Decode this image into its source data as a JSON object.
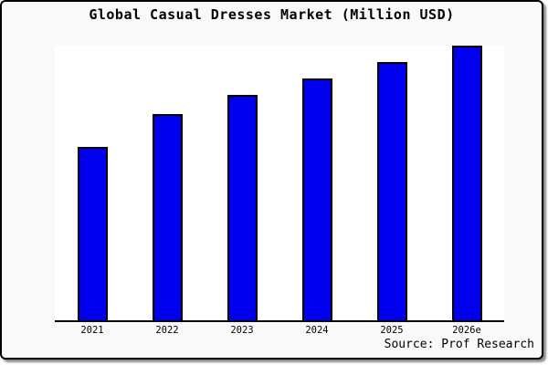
{
  "window": {
    "background": "#f9f9f9",
    "frame_border_color": "#000000",
    "plot_background": "#ffffff"
  },
  "chart": {
    "title": "Global Casual Dresses Market (Million USD)",
    "source": "Source: Prof Research",
    "bar_color": "#0000ee",
    "bar_border_color": "#000000",
    "axis_color": "#000000"
  },
  "chart_data": {
    "type": "bar",
    "title": "Global Casual Dresses Market (Million USD)",
    "categories": [
      "2021",
      "2022",
      "2023",
      "2024",
      "2025",
      "2026e"
    ],
    "values": [
      63,
      75,
      82,
      88,
      94,
      100
    ],
    "values_unit": "relative height, % of tallest bar (no y-axis or data labels shown in chart)",
    "xlabel": "",
    "ylabel": "",
    "legend": "none",
    "grid": false,
    "y_axis_visible": false,
    "x_axis_visible": true,
    "annotations": [
      "Source: Prof Research"
    ]
  }
}
